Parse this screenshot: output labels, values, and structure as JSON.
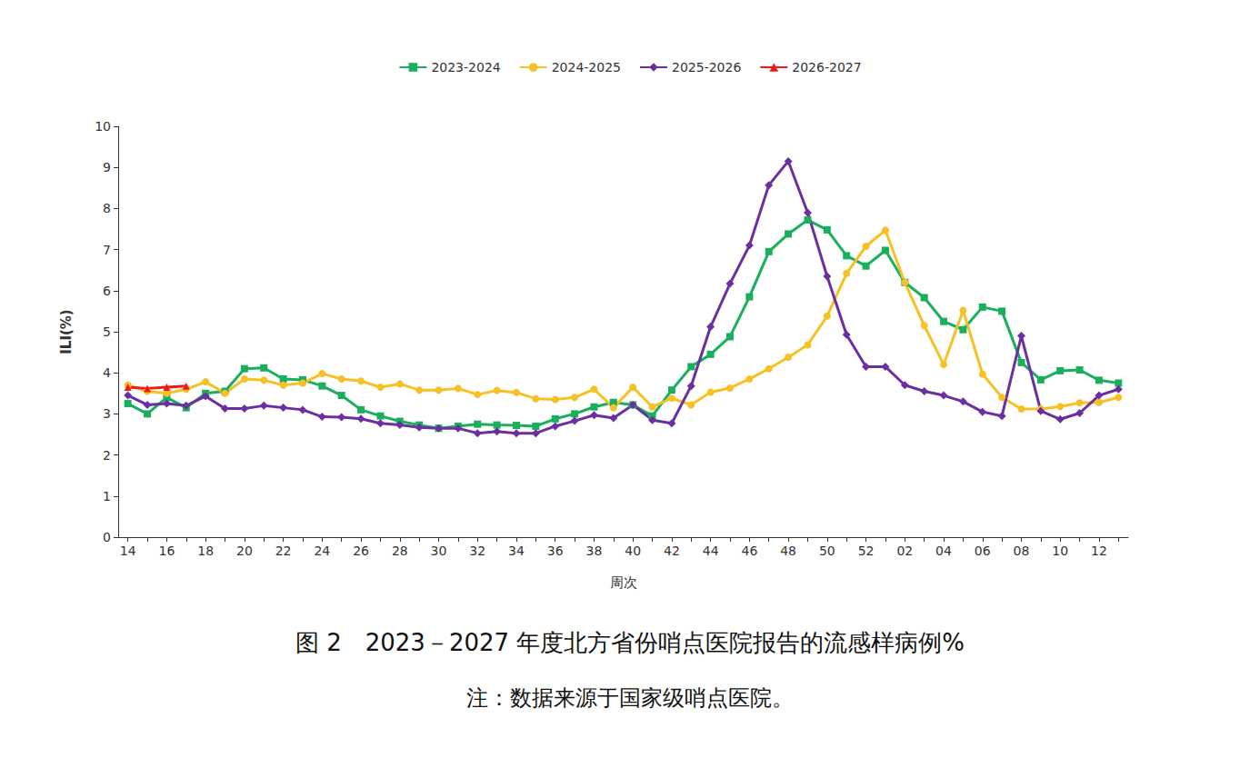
{
  "chart_data": {
    "type": "line",
    "title": "图 2　2023－2027 年度北方省份哨点医院报告的流感样病例%",
    "subtitle": "注：数据来源于国家级哨点医院。",
    "x_label": "周次",
    "y_label": "ILI(%)",
    "categories": [
      "14",
      null,
      "16",
      null,
      "18",
      null,
      "20",
      null,
      "22",
      null,
      "24",
      null,
      "26",
      null,
      "28",
      null,
      "30",
      null,
      "32",
      null,
      "34",
      null,
      "36",
      null,
      "38",
      null,
      "40",
      null,
      "42",
      null,
      "44",
      null,
      "46",
      null,
      "48",
      null,
      "50",
      null,
      "52",
      null,
      "02",
      null,
      "04",
      null,
      "06",
      null,
      "08",
      null,
      "10",
      null,
      "12",
      null
    ],
    "ylim": [
      0,
      10
    ],
    "yticks": [
      0,
      1,
      2,
      3,
      4,
      5,
      6,
      7,
      8,
      9,
      10
    ],
    "grid": false,
    "legend": "top",
    "series": [
      {
        "name": "2023-2024",
        "color": "#1aaf5d",
        "marker": "square",
        "values": [
          3.25,
          3.0,
          3.4,
          3.15,
          3.5,
          3.55,
          4.1,
          4.12,
          3.85,
          3.83,
          3.68,
          3.45,
          3.1,
          2.95,
          2.82,
          2.73,
          2.65,
          2.7,
          2.75,
          2.73,
          2.72,
          2.7,
          2.88,
          3.0,
          3.17,
          3.28,
          3.22,
          2.95,
          3.58,
          4.15,
          4.45,
          4.88,
          5.85,
          6.95,
          7.38,
          7.72,
          7.48,
          6.85,
          6.6,
          6.98,
          6.2,
          5.83,
          5.25,
          5.05,
          5.6,
          5.5,
          4.25,
          3.83,
          4.05,
          4.07,
          3.82,
          3.75
        ]
      },
      {
        "name": "2024-2025",
        "color": "#f5c125",
        "marker": "circle",
        "values": [
          3.7,
          3.55,
          3.5,
          3.6,
          3.78,
          3.5,
          3.85,
          3.82,
          3.7,
          3.75,
          3.98,
          3.85,
          3.8,
          3.65,
          3.73,
          3.58,
          3.58,
          3.62,
          3.47,
          3.57,
          3.52,
          3.37,
          3.35,
          3.4,
          3.6,
          3.15,
          3.65,
          3.17,
          3.38,
          3.22,
          3.53,
          3.63,
          3.85,
          4.1,
          4.38,
          4.68,
          5.38,
          6.42,
          7.08,
          7.47,
          6.2,
          5.15,
          4.2,
          5.52,
          3.97,
          3.4,
          3.12,
          3.12,
          3.18,
          3.27,
          3.28,
          3.4
        ]
      },
      {
        "name": "2025-2026",
        "color": "#6b2fa0",
        "marker": "diamond",
        "values": [
          3.45,
          3.22,
          3.25,
          3.2,
          3.43,
          3.13,
          3.13,
          3.2,
          3.15,
          3.1,
          2.93,
          2.92,
          2.88,
          2.77,
          2.73,
          2.67,
          2.65,
          2.65,
          2.53,
          2.57,
          2.53,
          2.53,
          2.7,
          2.83,
          2.97,
          2.9,
          3.22,
          2.85,
          2.77,
          3.68,
          5.12,
          6.17,
          7.1,
          8.57,
          9.15,
          7.9,
          6.35,
          4.93,
          4.15,
          4.15,
          3.7,
          3.55,
          3.45,
          3.3,
          3.05,
          2.95,
          4.9,
          3.07,
          2.87,
          3.02,
          3.45,
          3.6
        ]
      },
      {
        "name": "2026-2027",
        "color": "#f21818",
        "marker": "triangle",
        "values": [
          3.65,
          3.62,
          3.65,
          3.68,
          null,
          null,
          null,
          null,
          null,
          null,
          null,
          null,
          null,
          null,
          null,
          null,
          null,
          null,
          null,
          null,
          null,
          null,
          null,
          null,
          null,
          null,
          null,
          null,
          null,
          null,
          null,
          null,
          null,
          null,
          null,
          null,
          null,
          null,
          null,
          null,
          null,
          null,
          null,
          null,
          null,
          null,
          null,
          null,
          null,
          null,
          null,
          null
        ]
      }
    ]
  }
}
